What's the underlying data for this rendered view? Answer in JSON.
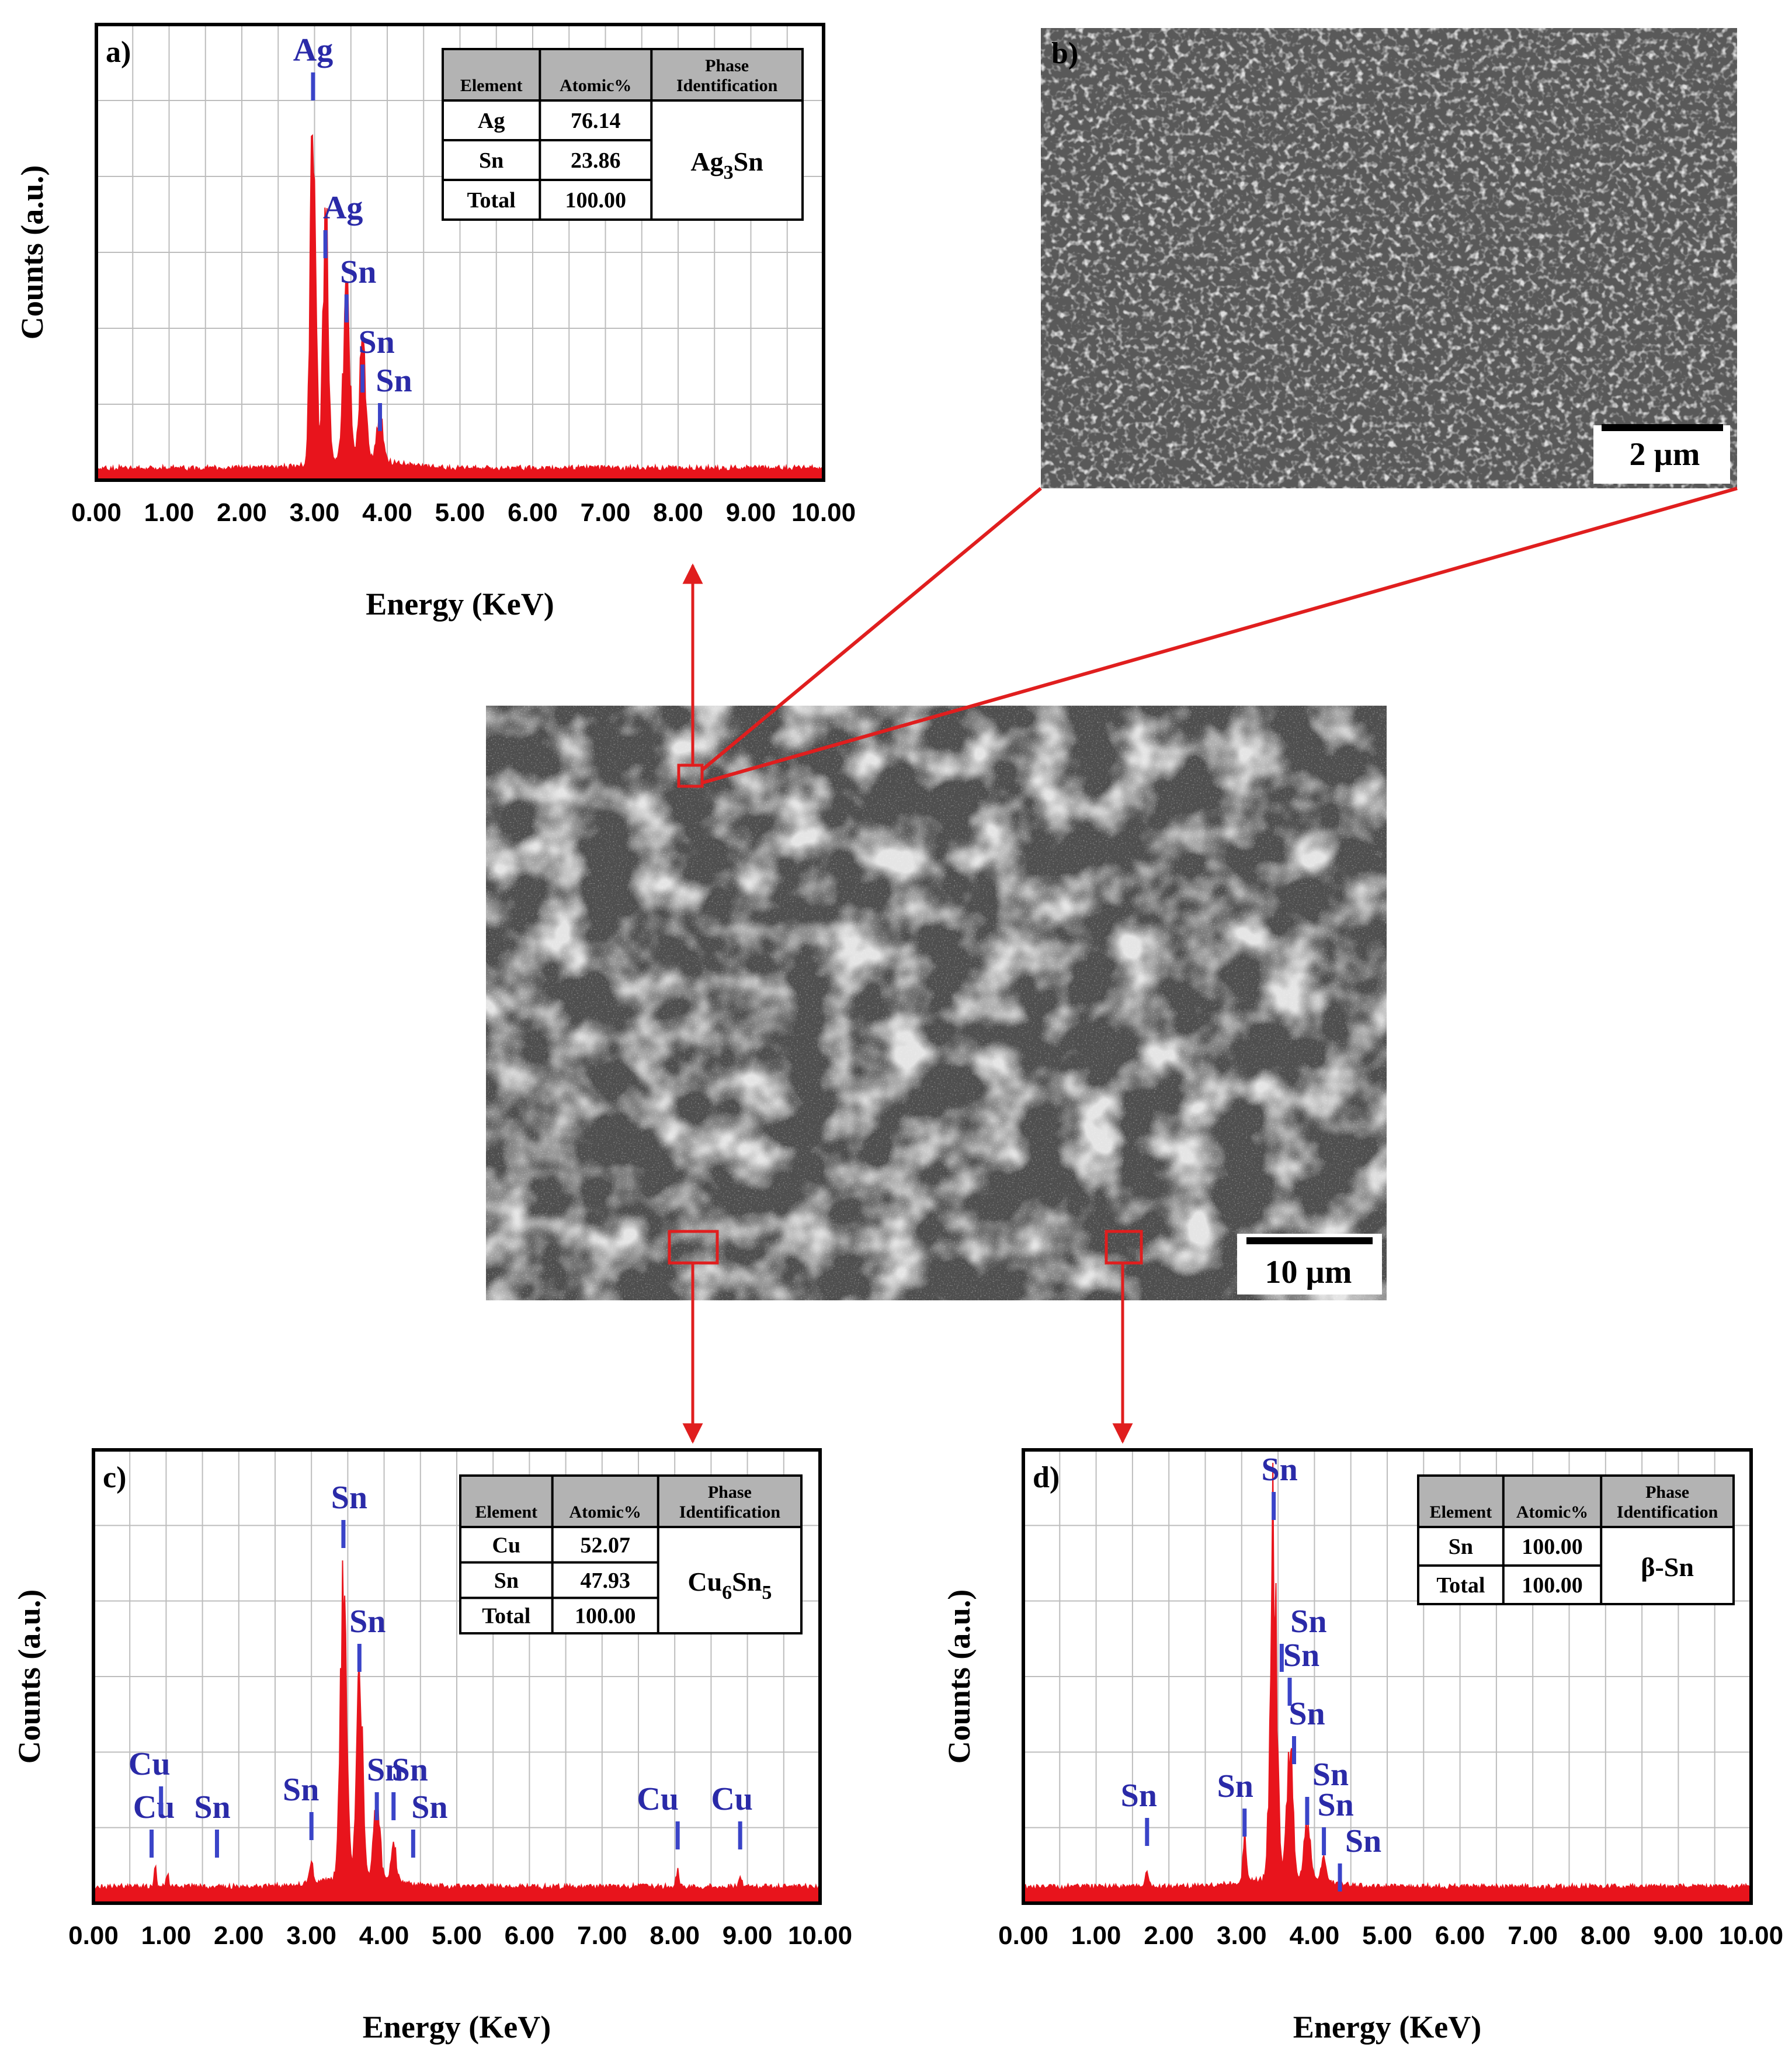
{
  "colors": {
    "spectrum": "#e8141c",
    "peak_marker": "#3a44c8",
    "peak_label": "#2a2aa8",
    "pointer": "#e01e1e",
    "grid": "#bdbdbd",
    "table_header_bg": "#b3b3b3"
  },
  "sem_main": {
    "scale_bar": "10 µm"
  },
  "sem_zoom": {
    "panel_label": "b)",
    "scale_bar": "2 µm"
  },
  "chart_data": [
    {
      "panel_label": "a)",
      "type": "line",
      "xlabel": "Energy (KeV)",
      "ylabel": "Counts (a.u.)",
      "xlim": [
        0,
        10
      ],
      "x_ticks": [
        "0.00",
        "1.00",
        "2.00",
        "3.00",
        "4.00",
        "5.00",
        "6.00",
        "7.00",
        "8.00",
        "9.00",
        "10.00"
      ],
      "grid": true,
      "spectrum_peaks": [
        {
          "energy": 2.98,
          "height": 0.82,
          "width": 0.05
        },
        {
          "energy": 3.15,
          "height": 0.55,
          "width": 0.05
        },
        {
          "energy": 3.44,
          "height": 0.38,
          "width": 0.06
        },
        {
          "energy": 3.66,
          "height": 0.26,
          "width": 0.06
        },
        {
          "energy": 3.9,
          "height": 0.1,
          "width": 0.06
        }
      ],
      "baseline": 0.02,
      "peaks": [
        {
          "label": "Ag",
          "energy": 2.98
        },
        {
          "label": "Ag",
          "energy": 3.15
        },
        {
          "label": "Sn",
          "energy": 3.44
        },
        {
          "label": "Sn",
          "energy": 3.66
        },
        {
          "label": "Sn",
          "energy": 3.9
        }
      ],
      "table": {
        "headers": [
          "Element",
          "Atomic%",
          "Phase",
          "Identification"
        ],
        "rows": [
          {
            "element": "Ag",
            "atomic": "76.14"
          },
          {
            "element": "Sn",
            "atomic": "23.86"
          },
          {
            "element": "Total",
            "atomic": "100.00"
          }
        ],
        "phase": {
          "main1": "Ag",
          "sub1": "3",
          "main2": "Sn",
          "sub2": ""
        }
      }
    },
    {
      "panel_label": "c)",
      "type": "line",
      "xlabel": "Energy (KeV)",
      "ylabel": "Counts (a.u.)",
      "xlim": [
        0,
        10
      ],
      "x_ticks": [
        "0.00",
        "1.00",
        "2.00",
        "3.00",
        "4.00",
        "5.00",
        "6.00",
        "7.00",
        "8.00",
        "9.00",
        "10.00"
      ],
      "grid": true,
      "spectrum_peaks": [
        {
          "energy": 0.85,
          "height": 0.05,
          "width": 0.02
        },
        {
          "energy": 1.02,
          "height": 0.04,
          "width": 0.02
        },
        {
          "energy": 3.0,
          "height": 0.05,
          "width": 0.03
        },
        {
          "energy": 3.44,
          "height": 0.68,
          "width": 0.06
        },
        {
          "energy": 3.66,
          "height": 0.45,
          "width": 0.06
        },
        {
          "energy": 3.9,
          "height": 0.18,
          "width": 0.06
        },
        {
          "energy": 4.13,
          "height": 0.08,
          "width": 0.05
        },
        {
          "energy": 8.04,
          "height": 0.03,
          "width": 0.03
        },
        {
          "energy": 8.9,
          "height": 0.02,
          "width": 0.03
        }
      ],
      "baseline": 0.03,
      "peaks": [
        {
          "label": "Cu",
          "energy": 0.8
        },
        {
          "label": "Cu",
          "energy": 0.93
        },
        {
          "label": "Sn",
          "energy": 1.7
        },
        {
          "label": "Sn",
          "energy": 3.0
        },
        {
          "label": "Sn",
          "energy": 3.44
        },
        {
          "label": "Sn",
          "energy": 3.66
        },
        {
          "label": "Sn",
          "energy": 3.9
        },
        {
          "label": "Sn",
          "energy": 4.13
        },
        {
          "label": "Sn",
          "energy": 4.4
        },
        {
          "label": "Cu",
          "energy": 8.04
        },
        {
          "label": "Cu",
          "energy": 8.9
        }
      ],
      "table": {
        "headers": [
          "Element",
          "Atomic%",
          "Phase",
          "Identification"
        ],
        "rows": [
          {
            "element": "Cu",
            "atomic": "52.07"
          },
          {
            "element": "Sn",
            "atomic": "47.93"
          },
          {
            "element": "Total",
            "atomic": "100.00"
          }
        ],
        "phase": {
          "main1": "Cu",
          "sub1": "6",
          "main2": "Sn",
          "sub2": "5"
        }
      }
    },
    {
      "panel_label": "d)",
      "type": "line",
      "xlabel": "Energy (KeV)",
      "ylabel": "Counts (a.u.)",
      "xlim": [
        0,
        10
      ],
      "x_ticks": [
        "0.00",
        "1.00",
        "2.00",
        "3.00",
        "4.00",
        "5.00",
        "6.00",
        "7.00",
        "8.00",
        "9.00",
        "10.00"
      ],
      "grid": true,
      "spectrum_peaks": [
        {
          "energy": 1.7,
          "height": 0.03,
          "width": 0.03
        },
        {
          "energy": 3.04,
          "height": 0.1,
          "width": 0.03
        },
        {
          "energy": 3.44,
          "height": 0.76,
          "width": 0.06
        },
        {
          "energy": 3.66,
          "height": 0.28,
          "width": 0.06
        },
        {
          "energy": 3.9,
          "height": 0.12,
          "width": 0.06
        },
        {
          "energy": 4.13,
          "height": 0.05,
          "width": 0.05
        }
      ],
      "baseline": 0.03,
      "peaks": [
        {
          "label": "Sn",
          "energy": 1.7
        },
        {
          "label": "Sn",
          "energy": 3.04
        },
        {
          "label": "Sn",
          "energy": 3.44
        },
        {
          "label": "Sn",
          "energy": 3.55
        },
        {
          "label": "Sn",
          "energy": 3.66
        },
        {
          "label": "Sn",
          "energy": 3.72
        },
        {
          "label": "Sn",
          "energy": 3.9
        },
        {
          "label": "Sn",
          "energy": 4.13
        },
        {
          "label": "Sn",
          "energy": 4.35
        }
      ],
      "table": {
        "headers": [
          "Element",
          "Atomic%",
          "Phase",
          "Identification"
        ],
        "rows": [
          {
            "element": "Sn",
            "atomic": "100.00"
          },
          {
            "element": "Total",
            "atomic": "100.00"
          }
        ],
        "phase": {
          "main1": "β-Sn",
          "sub1": "",
          "main2": "",
          "sub2": ""
        }
      }
    }
  ]
}
